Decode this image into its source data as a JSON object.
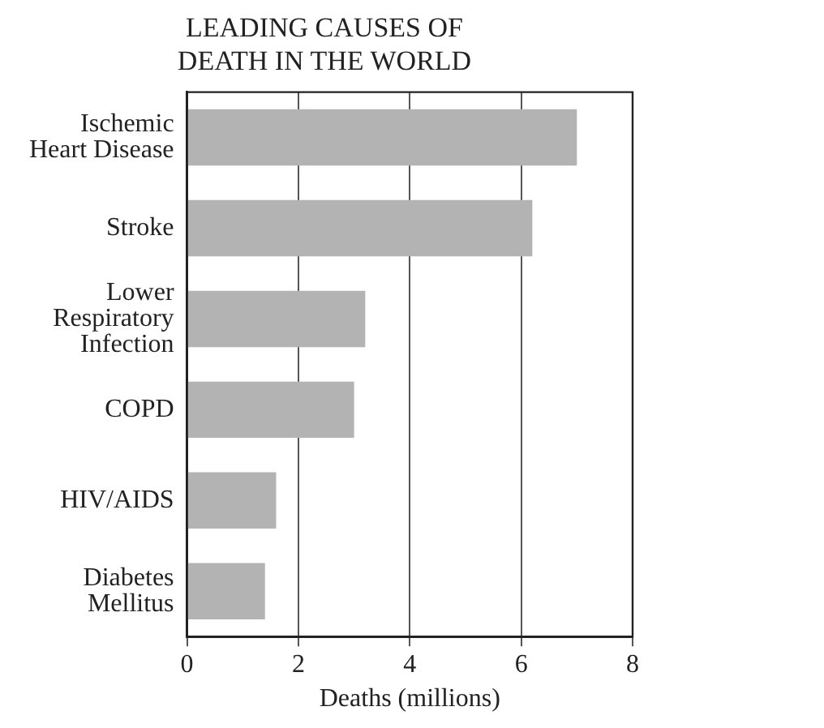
{
  "chart_data": {
    "type": "bar",
    "orientation": "horizontal",
    "title": "LEADING CAUSES OF DEATH IN THE WORLD",
    "xlabel": "Deaths (millions)",
    "categories": [
      "Ischemic Heart Disease",
      "Stroke",
      "Lower Respiratory Infection",
      "COPD",
      "HIV/AIDS",
      "Diabetes Mellitus"
    ],
    "values": [
      7.0,
      6.2,
      3.2,
      3.0,
      1.6,
      1.4
    ],
    "color": "#b3b3b3",
    "xlim": [
      0,
      8
    ],
    "xticks": [
      0,
      2,
      4,
      6,
      8
    ],
    "grid": "x"
  }
}
